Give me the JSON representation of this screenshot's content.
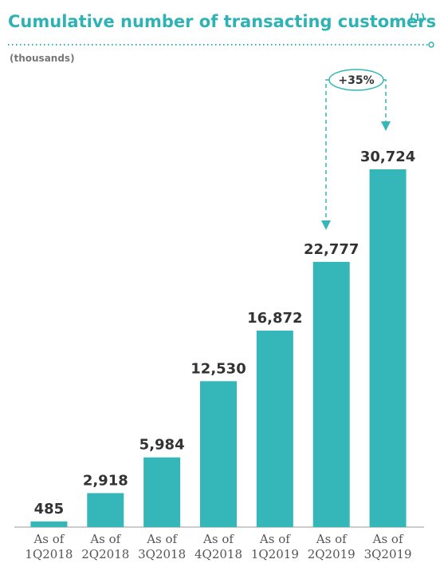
{
  "chart_data": {
    "type": "bar",
    "title": "Cumulative number of transacting customers",
    "title_note": "(1)",
    "subtitle": "(thousands)",
    "categories": [
      "As of\n1Q2018",
      "As of\n2Q2018",
      "As of\n3Q2018",
      "As of\n4Q2018",
      "As of\n1Q2019",
      "As of\n2Q2019",
      "As of\n3Q2019"
    ],
    "values": [
      485,
      2918,
      5984,
      12530,
      16872,
      22777,
      30724
    ],
    "value_labels": [
      "485",
      "2,918",
      "5,984",
      "12,530",
      "16,872",
      "22,777",
      "30,724"
    ],
    "color": "#35b6b8",
    "annotation": "+35%"
  }
}
